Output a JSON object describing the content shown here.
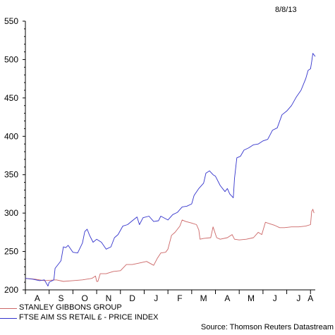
{
  "date_label": "8/8/13",
  "source": "Source: Thomson Reuters Datastream",
  "chart_data": {
    "type": "line",
    "title": "",
    "xlabel": "",
    "ylabel": "",
    "ylim": [
      200,
      550
    ],
    "yticks": [
      200,
      250,
      300,
      350,
      400,
      450,
      500,
      550
    ],
    "xlim": [
      0,
      12.2
    ],
    "xticks": [
      {
        "label": "A",
        "pos": 0.5
      },
      {
        "label": "S",
        "pos": 1.5
      },
      {
        "label": "O",
        "pos": 2.5
      },
      {
        "label": "N",
        "pos": 3.5
      },
      {
        "label": "D",
        "pos": 4.5
      },
      {
        "label": "J",
        "pos": 5.5
      },
      {
        "label": "F",
        "pos": 6.5
      },
      {
        "label": "M",
        "pos": 7.5
      },
      {
        "label": "A",
        "pos": 8.5
      },
      {
        "label": "M",
        "pos": 9.5
      },
      {
        "label": "J",
        "pos": 10.5
      },
      {
        "label": "J",
        "pos": 11.5
      },
      {
        "label": "A",
        "pos": 12.0
      }
    ],
    "legend_position": "bottom-left",
    "series": [
      {
        "name": "STANLEY GIBBONS GROUP",
        "color": "#cc6666",
        "points": [
          [
            0,
            215
          ],
          [
            0.4,
            214
          ],
          [
            0.8,
            212
          ],
          [
            1.3,
            213
          ],
          [
            1.6,
            211
          ],
          [
            2.0,
            212
          ],
          [
            2.4,
            213
          ],
          [
            2.8,
            215
          ],
          [
            2.95,
            218
          ],
          [
            3.0,
            211
          ],
          [
            3.05,
            211
          ],
          [
            3.15,
            221
          ],
          [
            3.4,
            221
          ],
          [
            3.7,
            224
          ],
          [
            4.0,
            225
          ],
          [
            4.25,
            233
          ],
          [
            4.5,
            233
          ],
          [
            4.8,
            235
          ],
          [
            5.1,
            237
          ],
          [
            5.4,
            232
          ],
          [
            5.55,
            241
          ],
          [
            5.7,
            248
          ],
          [
            5.9,
            249
          ],
          [
            6.0,
            253
          ],
          [
            6.15,
            271
          ],
          [
            6.3,
            275
          ],
          [
            6.5,
            283
          ],
          [
            6.6,
            291
          ],
          [
            6.75,
            289
          ],
          [
            7.0,
            287
          ],
          [
            7.2,
            285
          ],
          [
            7.3,
            278
          ],
          [
            7.35,
            266
          ],
          [
            7.5,
            267
          ],
          [
            7.8,
            268
          ],
          [
            7.9,
            282
          ],
          [
            8.05,
            268
          ],
          [
            8.2,
            266
          ],
          [
            8.5,
            268
          ],
          [
            8.7,
            272
          ],
          [
            8.8,
            266
          ],
          [
            9.0,
            265
          ],
          [
            9.3,
            266
          ],
          [
            9.6,
            268
          ],
          [
            9.8,
            275
          ],
          [
            9.95,
            272
          ],
          [
            10.1,
            288
          ],
          [
            10.3,
            286
          ],
          [
            10.5,
            284
          ],
          [
            10.7,
            281
          ],
          [
            10.9,
            281
          ],
          [
            11.2,
            282
          ],
          [
            11.5,
            282
          ],
          [
            11.8,
            283
          ],
          [
            12.0,
            285
          ],
          [
            12.05,
            302
          ],
          [
            12.1,
            305
          ],
          [
            12.15,
            300
          ]
        ]
      },
      {
        "name": "FTSE AIM SS RETAIL £ - PRICE INDEX",
        "color": "#3333cc",
        "points": [
          [
            0,
            215
          ],
          [
            0.3,
            214
          ],
          [
            0.6,
            212
          ],
          [
            0.8,
            213
          ],
          [
            0.95,
            205
          ],
          [
            1.0,
            210
          ],
          [
            1.2,
            213
          ],
          [
            1.25,
            228
          ],
          [
            1.4,
            234
          ],
          [
            1.5,
            238
          ],
          [
            1.6,
            256
          ],
          [
            1.7,
            255
          ],
          [
            1.8,
            258
          ],
          [
            2.0,
            249
          ],
          [
            2.2,
            248
          ],
          [
            2.4,
            261
          ],
          [
            2.5,
            276
          ],
          [
            2.6,
            279
          ],
          [
            2.7,
            271
          ],
          [
            2.85,
            262
          ],
          [
            3.0,
            266
          ],
          [
            3.2,
            262
          ],
          [
            3.4,
            253
          ],
          [
            3.6,
            256
          ],
          [
            3.75,
            268
          ],
          [
            3.9,
            272
          ],
          [
            4.1,
            283
          ],
          [
            4.3,
            285
          ],
          [
            4.5,
            290
          ],
          [
            4.7,
            295
          ],
          [
            4.8,
            285
          ],
          [
            4.95,
            294
          ],
          [
            5.2,
            296
          ],
          [
            5.4,
            289
          ],
          [
            5.6,
            290
          ],
          [
            5.7,
            296
          ],
          [
            6.0,
            291
          ],
          [
            6.2,
            298
          ],
          [
            6.4,
            301
          ],
          [
            6.6,
            308
          ],
          [
            6.8,
            309
          ],
          [
            7.0,
            312
          ],
          [
            7.1,
            323
          ],
          [
            7.3,
            332
          ],
          [
            7.5,
            339
          ],
          [
            7.6,
            352
          ],
          [
            7.75,
            355
          ],
          [
            7.9,
            350
          ],
          [
            8.0,
            348
          ],
          [
            8.2,
            336
          ],
          [
            8.4,
            328
          ],
          [
            8.5,
            332
          ],
          [
            8.6,
            325
          ],
          [
            8.75,
            320
          ],
          [
            8.8,
            345
          ],
          [
            8.9,
            372
          ],
          [
            9.05,
            374
          ],
          [
            9.2,
            382
          ],
          [
            9.4,
            385
          ],
          [
            9.6,
            389
          ],
          [
            9.8,
            390
          ],
          [
            10.0,
            394
          ],
          [
            10.2,
            396
          ],
          [
            10.4,
            408
          ],
          [
            10.6,
            411
          ],
          [
            10.8,
            428
          ],
          [
            11.0,
            433
          ],
          [
            11.2,
            440
          ],
          [
            11.4,
            451
          ],
          [
            11.6,
            460
          ],
          [
            11.8,
            475
          ],
          [
            11.9,
            486
          ],
          [
            12.0,
            488
          ],
          [
            12.05,
            497
          ],
          [
            12.1,
            508
          ],
          [
            12.2,
            504
          ]
        ]
      }
    ]
  }
}
